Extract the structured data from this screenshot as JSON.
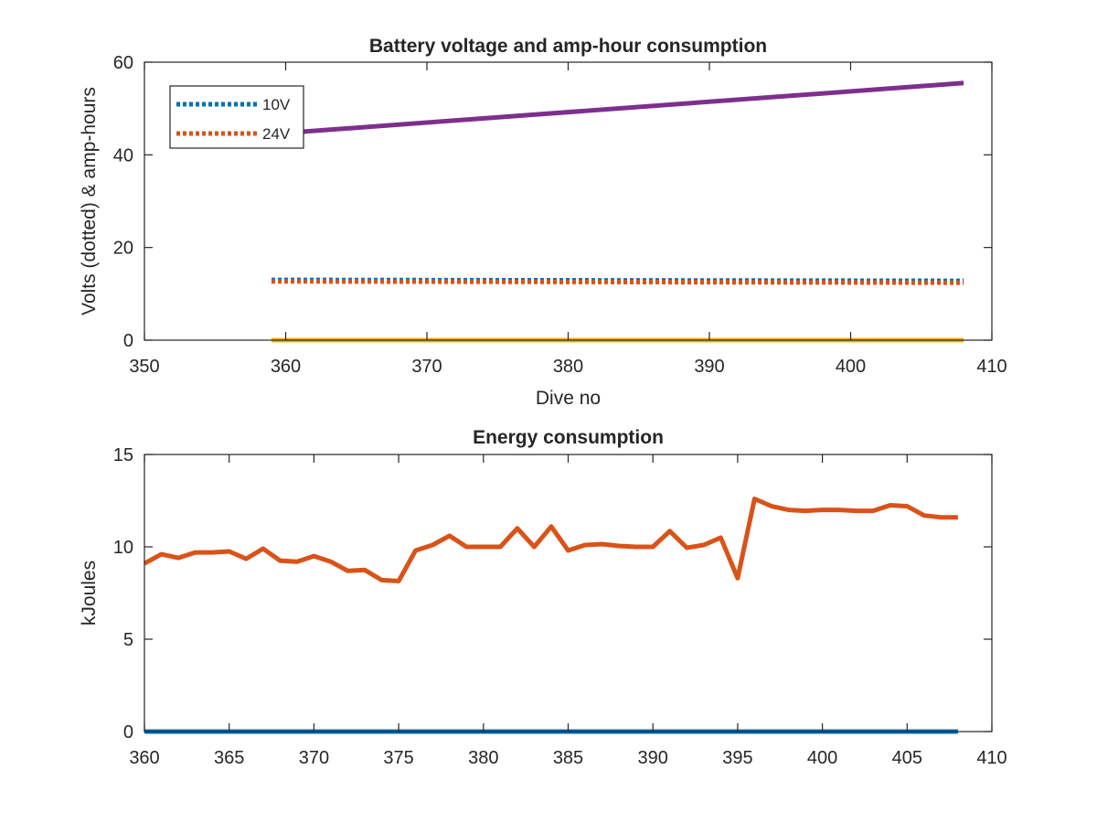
{
  "chart_data": [
    {
      "type": "line",
      "title": "Battery voltage and amp-hour consumption",
      "xlabel": "Dive no",
      "ylabel": "Volts (dotted) & amp-hours",
      "xlim": [
        350,
        410
      ],
      "ylim": [
        0,
        60
      ],
      "xticks": [
        "350",
        "360",
        "370",
        "380",
        "390",
        "400",
        "410"
      ],
      "yticks": [
        "0",
        "20",
        "40",
        "60"
      ],
      "legend_position": "top-left",
      "series": [
        {
          "name": "10V",
          "style": "dotted",
          "color": "#0072BD",
          "x": [
            359,
            408
          ],
          "y": [
            13.0,
            12.8
          ]
        },
        {
          "name": "24V",
          "style": "dotted",
          "color": "#D95319",
          "x": [
            359,
            408
          ],
          "y": [
            12.7,
            12.4
          ]
        },
        {
          "style": "solid",
          "color": "#7E2F8E",
          "x": [
            359,
            408
          ],
          "y": [
            44.5,
            55.5
          ]
        },
        {
          "style": "solid",
          "color": "#EDB120",
          "x": [
            359,
            408
          ],
          "y": [
            0,
            0
          ]
        }
      ]
    },
    {
      "type": "line",
      "title": "Energy consumption",
      "xlabel": "",
      "ylabel": "kJoules",
      "xlim": [
        360,
        410
      ],
      "ylim": [
        0,
        15
      ],
      "xticks": [
        "360",
        "365",
        "370",
        "375",
        "380",
        "385",
        "390",
        "395",
        "400",
        "405",
        "410"
      ],
      "yticks": [
        "0",
        "5",
        "10",
        "15"
      ],
      "series": [
        {
          "style": "solid",
          "color": "#D95319",
          "x": [
            360,
            361,
            362,
            363,
            364,
            365,
            366,
            367,
            368,
            369,
            370,
            371,
            372,
            373,
            374,
            375,
            376,
            377,
            378,
            379,
            380,
            381,
            382,
            383,
            384,
            385,
            386,
            387,
            388,
            389,
            390,
            391,
            392,
            393,
            394,
            395,
            396,
            397,
            398,
            399,
            400,
            401,
            402,
            403,
            404,
            405,
            406,
            407,
            408
          ],
          "y": [
            9.1,
            9.6,
            9.4,
            9.7,
            9.7,
            9.75,
            9.35,
            9.9,
            9.25,
            9.2,
            9.5,
            9.2,
            8.7,
            8.75,
            8.2,
            8.15,
            9.8,
            10.1,
            10.6,
            10.0,
            10.0,
            10.0,
            11.0,
            10.0,
            11.1,
            9.8,
            10.1,
            10.15,
            10.05,
            10.0,
            10.0,
            10.85,
            9.95,
            10.1,
            10.5,
            8.3,
            12.6,
            12.2,
            12.0,
            11.95,
            12.0,
            12.0,
            11.95,
            11.95,
            12.25,
            12.2,
            11.7,
            11.6,
            11.6
          ]
        },
        {
          "style": "solid",
          "color": "#0072BD",
          "x": [
            360,
            408
          ],
          "y": [
            0,
            0
          ]
        }
      ]
    }
  ]
}
